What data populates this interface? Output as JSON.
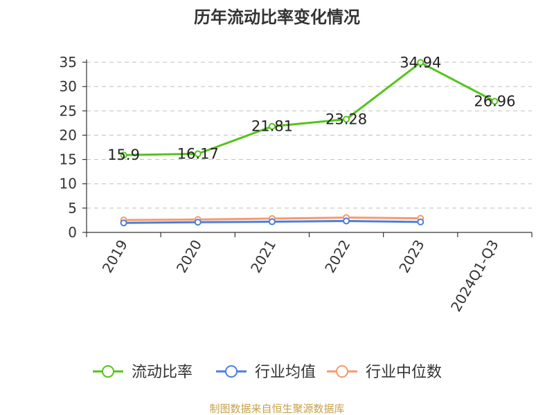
{
  "chart_data": {
    "type": "line",
    "title": "历年流动比率变化情况",
    "categories": [
      "2019",
      "2020",
      "2021",
      "2022",
      "2023",
      "2024Q1-Q3"
    ],
    "ylim": [
      0,
      35
    ],
    "yticks": [
      0,
      5,
      10,
      15,
      20,
      25,
      30,
      35
    ],
    "grid": true,
    "legend_position": "bottom",
    "series": [
      {
        "name": "流动比率",
        "color": "#52c41a",
        "values": [
          15.9,
          16.17,
          21.81,
          23.28,
          34.94,
          26.96
        ],
        "labels": [
          "15.9",
          "16.17",
          "21.81",
          "23.28",
          "34.94",
          "26.96"
        ]
      },
      {
        "name": "行业均值",
        "color": "#4a7ee0",
        "values": [
          1.95,
          2.1,
          2.2,
          2.35,
          2.15,
          null
        ]
      },
      {
        "name": "行业中位数",
        "color": "#f59a6a",
        "values": [
          2.55,
          2.65,
          2.85,
          3.05,
          2.9,
          null
        ]
      }
    ]
  },
  "source_note": "制图数据来自恒生聚源数据库"
}
